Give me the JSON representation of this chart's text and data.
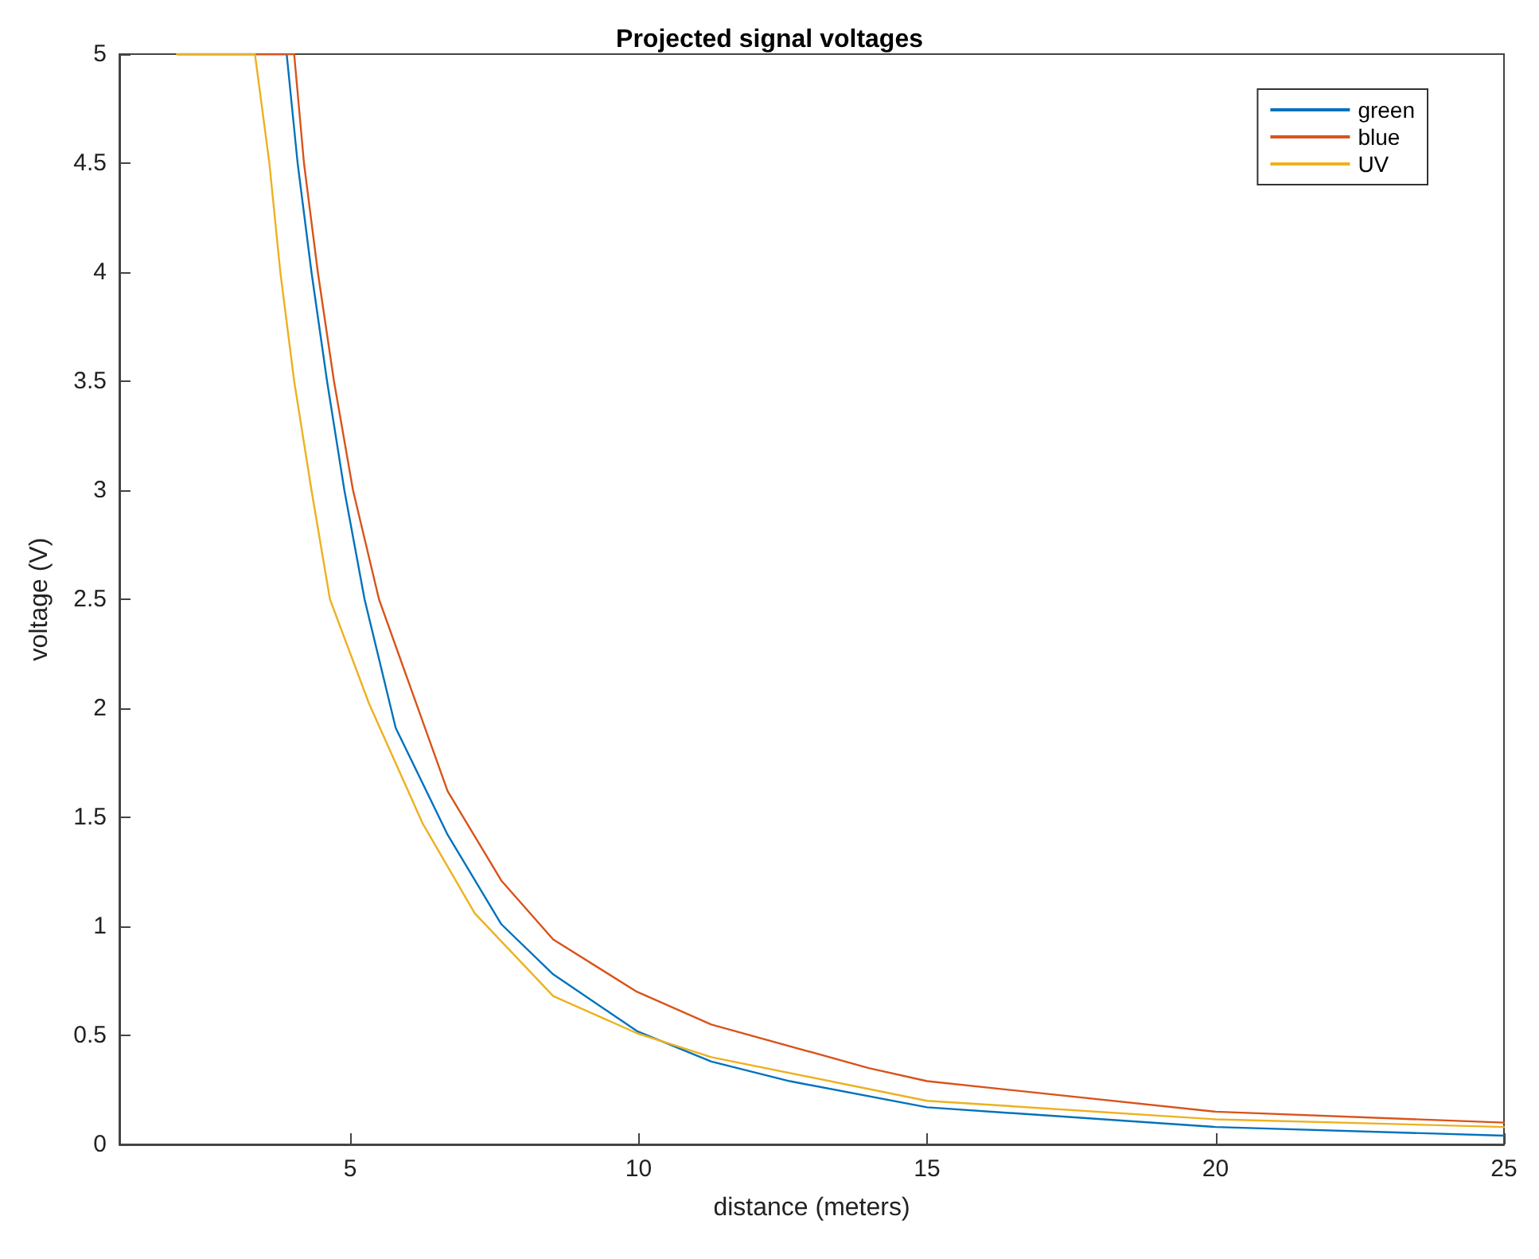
{
  "chart_data": {
    "type": "line",
    "title": "Projected signal voltages",
    "xlabel": "distance (meters)",
    "ylabel": "voltage (V)",
    "xlim": [
      1,
      25
    ],
    "xticks": [
      5,
      10,
      15,
      20,
      25
    ],
    "ylim": [
      0,
      5
    ],
    "yticks": [
      0,
      0.5,
      1,
      1.5,
      2,
      2.5,
      3,
      3.5,
      4,
      4.5,
      5
    ],
    "grid": false,
    "legend": "top right",
    "marker": "none",
    "line_style": "solid",
    "series": [
      {
        "name": "green",
        "color": "#0072bd",
        "x": [
          2,
          3.9,
          4.09,
          4.33,
          4.6,
          4.9,
          5.25,
          5.79,
          6.69,
          7.62,
          8.52,
          9.97,
          11.26,
          12.62,
          15,
          20,
          25
        ],
        "values": [
          5,
          5,
          4.5,
          4,
          3.5,
          3,
          2.5,
          1.91,
          1.42,
          1.01,
          0.78,
          0.52,
          0.38,
          0.29,
          0.17,
          0.08,
          0.04
        ]
      },
      {
        "name": "blue",
        "color": "#d95319",
        "x": [
          2,
          4.03,
          4.2,
          4.44,
          4.72,
          5.05,
          5.5,
          6.69,
          7.62,
          8.52,
          9.97,
          11.26,
          13.99,
          15,
          20,
          25
        ],
        "values": [
          5,
          5,
          4.5,
          4,
          3.5,
          3,
          2.5,
          1.62,
          1.21,
          0.94,
          0.7,
          0.55,
          0.35,
          0.29,
          0.15,
          0.1
        ]
      },
      {
        "name": "UV",
        "color": "#edb120",
        "x": [
          2,
          3.35,
          3.6,
          3.79,
          4.03,
          4.33,
          4.65,
          5.33,
          6.26,
          7.16,
          8.52,
          9.97,
          11.26,
          15,
          20,
          25
        ],
        "values": [
          5,
          5,
          4.5,
          4,
          3.5,
          3,
          2.5,
          2.02,
          1.47,
          1.06,
          0.68,
          0.51,
          0.4,
          0.2,
          0.115,
          0.08
        ]
      }
    ]
  }
}
